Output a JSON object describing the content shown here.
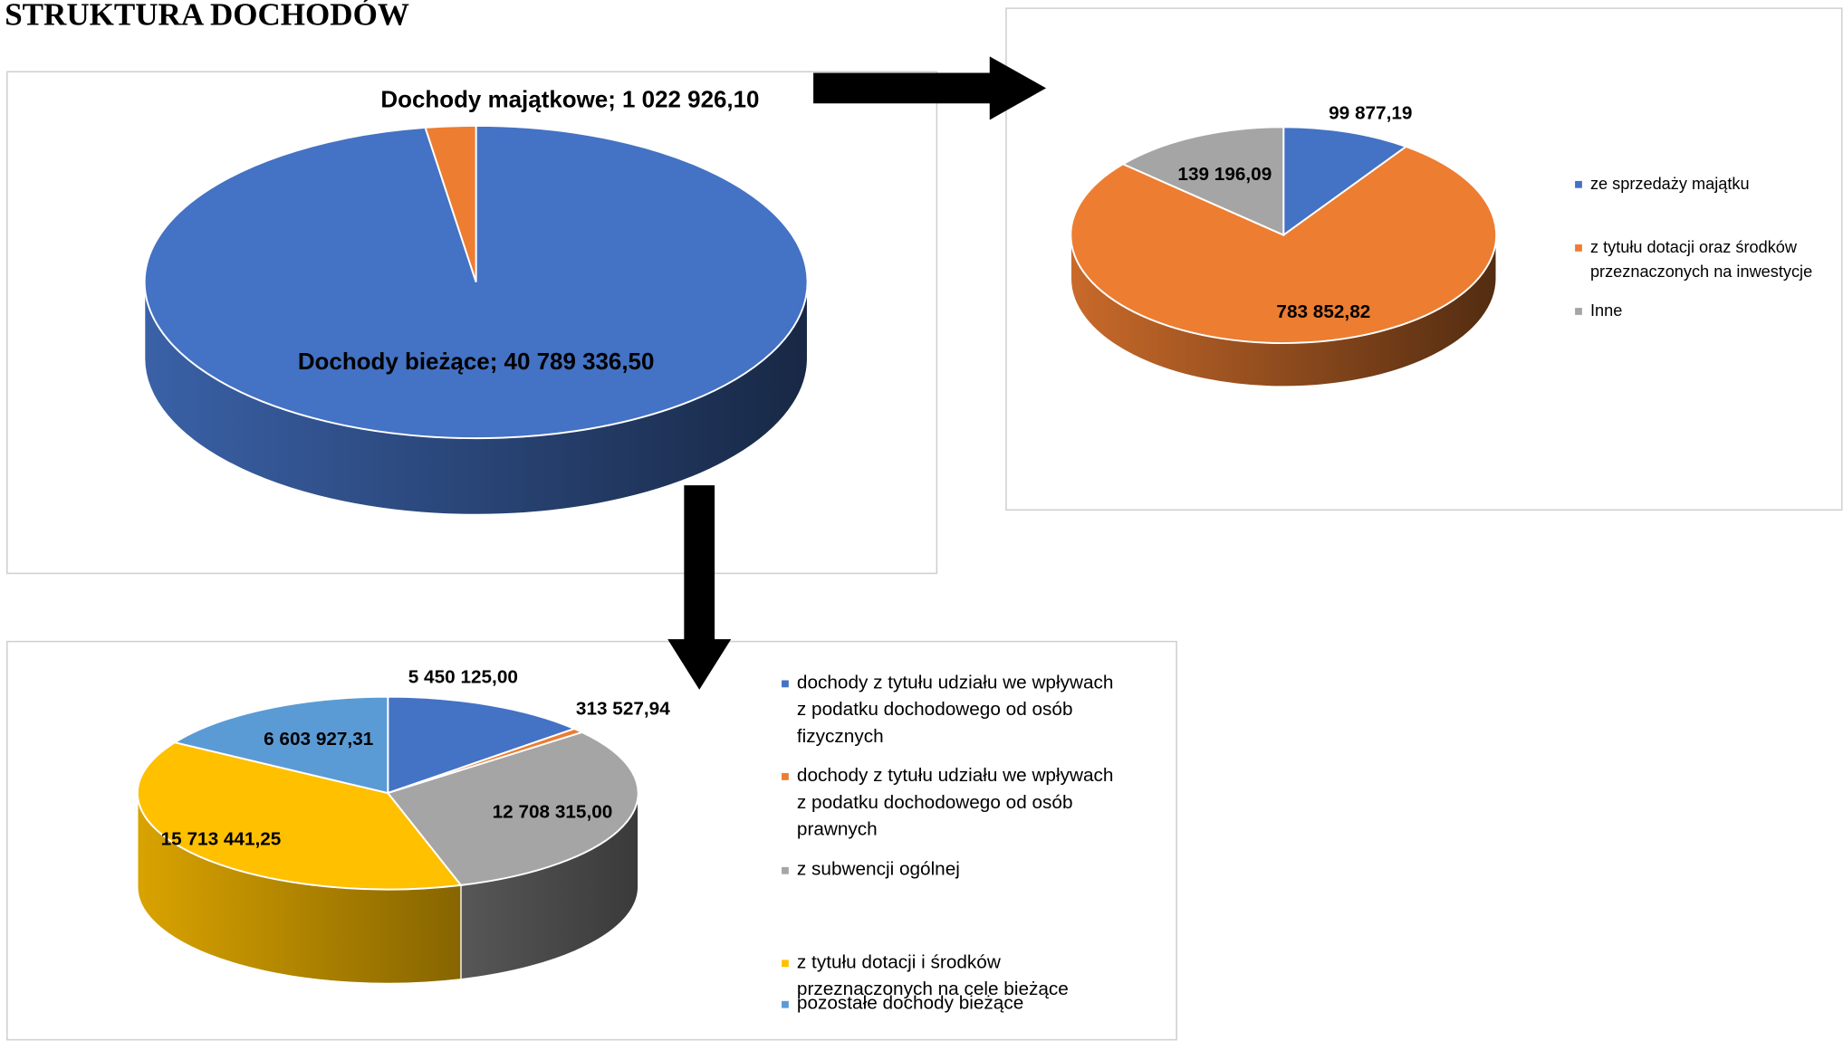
{
  "title": "STRUKTURA DOCHODÓW",
  "chart_data": [
    {
      "type": "pie",
      "categories": [
        "Dochody bieżące",
        "Dochody majątkowe"
      ],
      "values": [
        40789336.5,
        1022926.1
      ],
      "value_labels": [
        "Dochody bieżące; 40 789 336,50",
        "Dochody majątkowe; 1 022 926,10"
      ],
      "colors": [
        "#4472c4",
        "#ed7d31"
      ]
    },
    {
      "type": "pie",
      "categories": [
        "ze sprzedaży majątku",
        "z tytułu dotacji oraz środków przeznaczonych na inwestycje",
        "Inne"
      ],
      "values": [
        99877.19,
        783852.82,
        139196.09
      ],
      "value_labels": [
        "99 877,19",
        "783 852,82",
        "139 196,09"
      ],
      "colors": [
        "#4472c4",
        "#ed7d31",
        "#a5a5a5"
      ],
      "legend": "right"
    },
    {
      "type": "pie",
      "categories": [
        "dochody z tytułu udziału we wpływach z podatku dochodowego od osób fizycznych",
        "dochody z tytułu udziału we wpływach z podatku dochodowego od osób prawnych",
        "z subwencji ogólnej",
        "z tytułu dotacji i środków przeznaczonych na cele bieżące",
        "pozostałe dochody bieżące"
      ],
      "values": [
        5450125.0,
        313527.94,
        12708315.0,
        15713441.25,
        6603927.31
      ],
      "value_labels": [
        "5 450 125,00",
        "313 527,94",
        "12 708 315,00",
        "15 713 441,25",
        "6 603 927,31"
      ],
      "colors": [
        "#4472c4",
        "#ed7d31",
        "#a5a5a5",
        "#ffc000",
        "#5b9bd5"
      ],
      "legend": "right"
    }
  ]
}
